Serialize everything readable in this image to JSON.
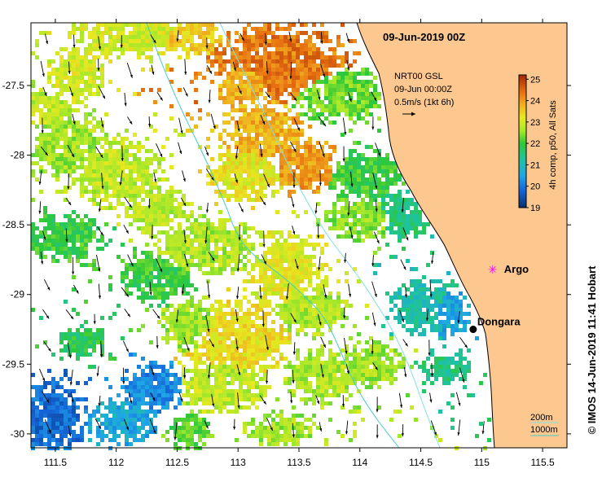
{
  "map": {
    "title": "09-Jun-2019 00Z",
    "product_lines": [
      "NRT00 GSL",
      "09-Jun 00:00Z",
      "0.5m/s (1kt 6h)"
    ],
    "colorbar": {
      "label": "4h comp, p50, All Sats",
      "min": 19,
      "max": 25.2,
      "ticks": [
        "19",
        "20",
        "21",
        "22",
        "23",
        "24",
        "25"
      ]
    },
    "x_ticks": [
      "111.5",
      "112",
      "112.5",
      "113",
      "113.5",
      "114",
      "114.5",
      "115",
      "115.5"
    ],
    "y_ticks": [
      "-27.5",
      "-28",
      "-28.5",
      "-29",
      "-29.5",
      "-30"
    ],
    "lon_range": [
      111.3,
      115.7
    ],
    "lat_range": [
      -30.1,
      -27.05
    ],
    "places": [
      {
        "name": "Argo",
        "lon": 115.09,
        "lat": -28.82,
        "symbol": "argo-marker",
        "color": "#ff00ff"
      },
      {
        "name": "Dongara",
        "lon": 114.93,
        "lat": -29.25,
        "symbol": "town-dot",
        "color": "#000000"
      }
    ],
    "bathymetry_legend": [
      "200m",
      "1000m"
    ],
    "copyright": "© IMOS 14-Jun-2019 11:41 Hobart",
    "colors": {
      "land": "#fcc890",
      "isobath_200": "#7fe0e0",
      "isobath_1000": "#44cccc"
    }
  }
}
